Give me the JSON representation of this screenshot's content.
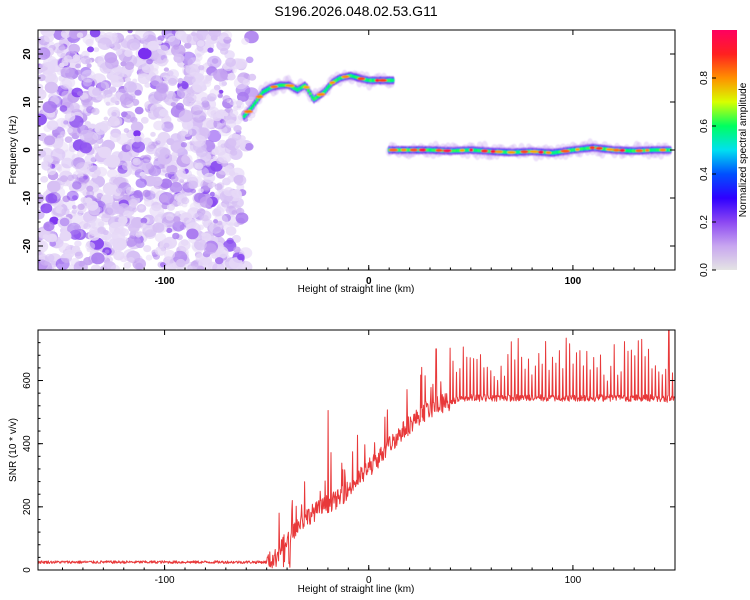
{
  "figure_title": "S196.2026.048.02.53.G11",
  "colors": {
    "snr_line": "#e8393a",
    "noise_purple": "#8a4cf0",
    "colorbar_stops": [
      "#e4e4e4",
      "#c8a6f0",
      "#8c48f2",
      "#2f00ff",
      "#0050ff",
      "#00e0f0",
      "#00ff60",
      "#d8ff00",
      "#ff9000",
      "#ff2020",
      "#ff0060"
    ]
  },
  "chart_data": [
    {
      "type": "heatmap",
      "title": "S196.2026.048.02.53.G11",
      "xlabel": "Height of straight line (km)",
      "ylabel": "Frequency (Hz)",
      "xlim": [
        -162,
        150
      ],
      "ylim": [
        -25,
        25
      ],
      "xticks": [
        -100,
        0,
        100
      ],
      "xtick_labels": [
        "-100",
        "0",
        "100"
      ],
      "yticks": [
        -20,
        -10,
        0,
        10,
        20
      ],
      "ytick_labels": [
        "-20",
        "-10",
        "0",
        "10",
        "20"
      ],
      "noise_region_x": [
        -162,
        -57
      ],
      "ridge_segments": [
        {
          "x": [
            -61,
            -57,
            -52,
            -48,
            -43,
            -39,
            -35,
            -31,
            -27,
            -22,
            -18,
            -14,
            -9,
            -5,
            0,
            5,
            12
          ],
          "freq": [
            7,
            9,
            12,
            13,
            13.5,
            13.5,
            12.5,
            13.5,
            10.5,
            12,
            14,
            15,
            15.5,
            15,
            14.5,
            14.5,
            14.5
          ]
        },
        {
          "x": [
            10,
            20,
            30,
            40,
            50,
            60,
            70,
            80,
            90,
            100,
            110,
            120,
            130,
            140,
            148
          ],
          "freq": [
            0,
            0,
            0,
            -0.2,
            0,
            -0.3,
            -0.5,
            -0.3,
            -0.6,
            0,
            0.5,
            0,
            -0.2,
            0,
            0
          ]
        }
      ],
      "colorbar": {
        "label": "Normalized spectral amplitude",
        "range": [
          0,
          1
        ],
        "ticks": [
          0.0,
          0.2,
          0.4,
          0.6,
          0.8
        ],
        "tick_labels": [
          "0.0",
          "0.2",
          "0.4",
          "0.6",
          "0.8"
        ]
      }
    },
    {
      "type": "line",
      "xlabel": "Height of straight line (km)",
      "ylabel": "SNR (10 * v/v)",
      "xlim": [
        -162,
        150
      ],
      "ylim": [
        0,
        760
      ],
      "xticks": [
        -100,
        0,
        100
      ],
      "xtick_labels": [
        "-100",
        "0",
        "100"
      ],
      "yticks": [
        0,
        200,
        400,
        600
      ],
      "ytick_labels": [
        "0",
        "200",
        "400",
        "600"
      ],
      "series": [
        {
          "name": "SNR",
          "envelope_x": [
            -162,
            -70,
            -50,
            -45,
            -40,
            -35,
            -30,
            -25,
            -20,
            -15,
            -10,
            -5,
            0,
            5,
            10,
            15,
            20,
            25,
            30,
            35,
            40,
            45,
            50,
            60,
            80,
            100,
            120,
            140,
            150
          ],
          "envelope_y": [
            25,
            25,
            25,
            40,
            100,
            140,
            170,
            190,
            210,
            225,
            255,
            290,
            320,
            355,
            395,
            430,
            460,
            490,
            510,
            525,
            535,
            540,
            545,
            545,
            545,
            545,
            545,
            545,
            540
          ],
          "notable_peaks": [
            {
              "x": -39,
              "y": 330
            },
            {
              "x": -20,
              "y": 505
            },
            {
              "x": 33,
              "y": 700
            },
            {
              "x": 147,
              "y": 760
            }
          ]
        }
      ]
    }
  ]
}
